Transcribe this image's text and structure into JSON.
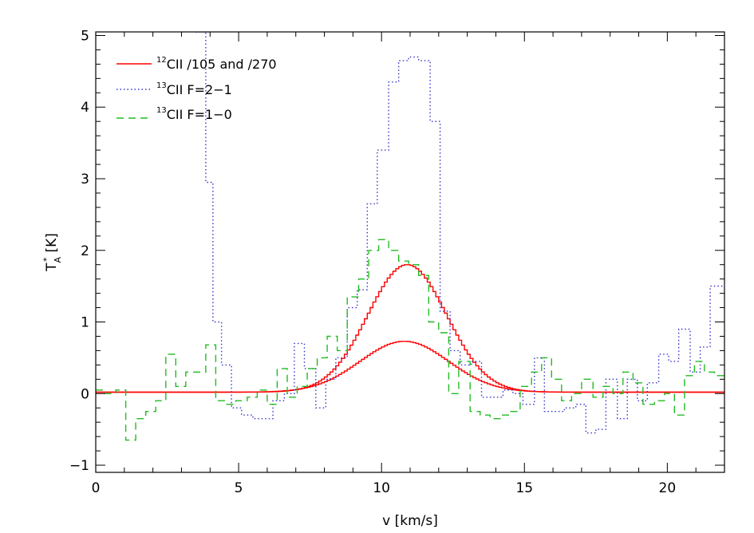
{
  "chart_data": {
    "type": "line",
    "title": "",
    "xlabel": "v [km/s]",
    "ylabel": "T",
    "ylabel_sub": "A",
    "ylabel_sup": "*",
    "ylabel_unit": "[K]",
    "xlim": [
      0,
      22
    ],
    "ylim": [
      -1.1,
      5.05
    ],
    "xticks": [
      0,
      5,
      10,
      15,
      20
    ],
    "yticks": [
      -1,
      0,
      1,
      2,
      3,
      4,
      5
    ],
    "xtick_labels": [
      "0",
      "5",
      "10",
      "15",
      "20"
    ],
    "ytick_labels": [
      "−1",
      "0",
      "1",
      "2",
      "3",
      "4",
      "5"
    ],
    "grid": false,
    "legend_position": "top-left",
    "legend": [
      {
        "sup": "12",
        "text": "CII /105 and /270"
      },
      {
        "sup": "13",
        "text": "CII F=2−1"
      },
      {
        "sup": "13",
        "text": "CII F=1−0"
      }
    ],
    "series": [
      {
        "style": "solid",
        "color": "#ff0000",
        "drawstyle": "steps",
        "gaussian": {
          "peak": 1.78,
          "center": 10.85,
          "sigma": 1.38,
          "offset": 0.02
        },
        "x_range": [
          0,
          22
        ],
        "step": 0.1
      },
      {
        "style": "solid",
        "color": "#ff0000",
        "drawstyle": "steps",
        "gaussian": {
          "peak": 0.71,
          "center": 10.75,
          "sigma": 1.55,
          "offset": 0.02
        },
        "x_range": [
          0,
          22
        ],
        "step": 0.1
      },
      {
        "style": "dotted",
        "color": "#3333cc",
        "drawstyle": "steps",
        "x": [
          3.5,
          3.85,
          4.1,
          4.4,
          4.75,
          5.1,
          5.5,
          5.85,
          6.2,
          6.6,
          6.95,
          7.3,
          7.7,
          8.05,
          8.4,
          8.8,
          9.15,
          9.5,
          9.85,
          10.25,
          10.6,
          10.95,
          11.3,
          11.7,
          12.05,
          12.4,
          12.75,
          13.15,
          13.5,
          13.85,
          14.25,
          14.6,
          14.95,
          15.35,
          15.7,
          16.05,
          16.4,
          16.8,
          17.15,
          17.5,
          17.85,
          18.25,
          18.6,
          18.95,
          19.3,
          19.7,
          20.05,
          20.4,
          20.8,
          21.15,
          21.5,
          21.85,
          22.0
        ],
        "y": [
          5.05,
          2.95,
          1.0,
          0.4,
          -0.2,
          -0.3,
          -0.35,
          -0.35,
          -0.1,
          0.0,
          0.7,
          0.35,
          -0.2,
          0.2,
          0.5,
          1.2,
          1.45,
          2.65,
          3.4,
          4.35,
          4.65,
          4.7,
          4.65,
          3.8,
          1.15,
          0.6,
          0.4,
          0.45,
          -0.05,
          -0.05,
          0.05,
          0.0,
          -0.15,
          0.5,
          -0.25,
          -0.25,
          -0.2,
          -0.15,
          -0.55,
          -0.5,
          0.2,
          -0.35,
          0.2,
          -0.1,
          0.15,
          0.55,
          0.45,
          0.9,
          0.3,
          0.65,
          1.5,
          1.5,
          1.5
        ]
      },
      {
        "style": "dashed",
        "color": "#22bb22",
        "drawstyle": "steps",
        "x": [
          0.0,
          0.35,
          0.7,
          1.05,
          1.4,
          1.75,
          2.1,
          2.45,
          2.8,
          3.15,
          3.5,
          3.85,
          4.2,
          4.55,
          4.9,
          5.3,
          5.65,
          6.0,
          6.35,
          6.7,
          7.05,
          7.4,
          7.75,
          8.1,
          8.45,
          8.8,
          9.2,
          9.55,
          9.9,
          10.25,
          10.6,
          10.95,
          11.3,
          11.65,
          12.0,
          12.35,
          12.7,
          13.1,
          13.45,
          13.8,
          14.15,
          14.5,
          14.85,
          15.25,
          15.6,
          15.95,
          16.3,
          16.65,
          17.0,
          17.4,
          17.75,
          18.1,
          18.45,
          18.8,
          19.15,
          19.55,
          19.9,
          20.25,
          20.6,
          20.95,
          21.3,
          21.65,
          22.0
        ],
        "y": [
          0.05,
          0.0,
          0.05,
          -0.65,
          -0.35,
          -0.25,
          -0.1,
          0.55,
          0.1,
          0.3,
          0.3,
          0.68,
          -0.1,
          -0.15,
          -0.1,
          -0.05,
          0.05,
          -0.15,
          0.35,
          -0.05,
          0.1,
          0.35,
          0.5,
          0.8,
          0.6,
          1.35,
          1.6,
          2.0,
          2.15,
          2.0,
          1.85,
          1.8,
          1.65,
          1.0,
          0.85,
          0.0,
          0.45,
          -0.25,
          -0.3,
          -0.35,
          -0.3,
          -0.25,
          0.1,
          0.3,
          0.5,
          0.2,
          -0.1,
          0.0,
          0.2,
          -0.05,
          0.1,
          0.0,
          0.3,
          0.15,
          -0.15,
          -0.1,
          0.0,
          -0.3,
          0.25,
          0.45,
          0.3,
          0.25,
          0.25
        ]
      }
    ],
    "colors": {
      "red": "#ff0000",
      "blue": "#3333cc",
      "green": "#22bb22",
      "axes": "#000000"
    }
  }
}
